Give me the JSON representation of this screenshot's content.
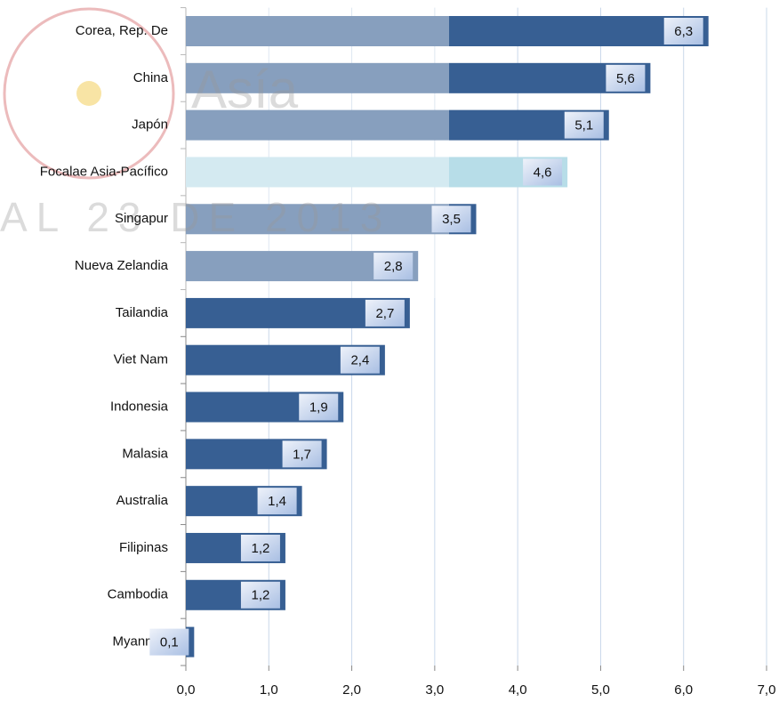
{
  "chart_data": {
    "type": "hbar",
    "categories": [
      "Corea, Rep. De",
      "China",
      "Japón",
      "Focalae Asia-Pacífico",
      "Singapur",
      "Nueva Zelandia",
      "Tailandia",
      "Viet Nam",
      "Indonesia",
      "Malasia",
      "Australia",
      "Filipinas",
      "Cambodia",
      "Myanmar"
    ],
    "values": [
      6.3,
      5.6,
      5.1,
      4.6,
      3.5,
      2.8,
      2.7,
      2.4,
      1.9,
      1.7,
      1.4,
      1.2,
      1.2,
      0.1
    ],
    "value_labels": [
      "6,3",
      "5,6",
      "5,1",
      "4,6",
      "3,5",
      "2,8",
      "2,7",
      "2,4",
      "1,9",
      "1,7",
      "1,4",
      "1,2",
      "1,2",
      "0,1"
    ],
    "colors": [
      "#375f93",
      "#375f93",
      "#375f93",
      "#b7dde8",
      "#375f93",
      "#375f93",
      "#375f93",
      "#375f93",
      "#375f93",
      "#375f93",
      "#375f93",
      "#375f93",
      "#375f93",
      "#375f93"
    ],
    "xlim": [
      0,
      7
    ],
    "xticks": [
      {
        "value": 0,
        "label": "0,0"
      },
      {
        "value": 1,
        "label": "1,0"
      },
      {
        "value": 2,
        "label": "2,0"
      },
      {
        "value": 3,
        "label": "3,0"
      },
      {
        "value": 4,
        "label": "4,0"
      },
      {
        "value": 5,
        "label": "5,0"
      },
      {
        "value": 6,
        "label": "6,0"
      },
      {
        "value": 7,
        "label": "7,0"
      }
    ],
    "grid": true,
    "watermark": [
      "Asía",
      "AL 23 DE 2013"
    ]
  }
}
